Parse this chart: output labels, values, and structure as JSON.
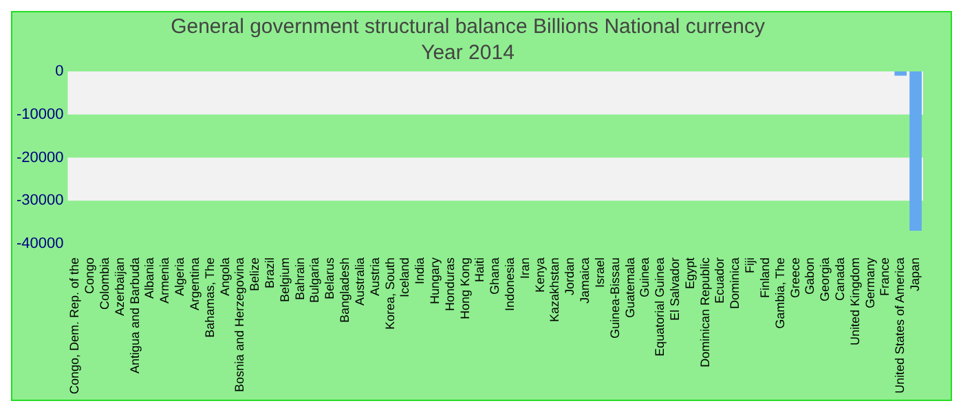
{
  "chart_data": {
    "type": "bar",
    "title": "General government structural balance Billions National currency",
    "subtitle": "Year 2014",
    "categories": [
      "Congo, Dem. Rep. of the",
      "Congo",
      "Colombia",
      "Azerbaijan",
      "Antigua and Barbuda",
      "Albania",
      "Armenia",
      "Algeria",
      "Argentina",
      "Bahamas, The",
      "Angola",
      "Bosnia and Herzegovina",
      "Belize",
      "Brazil",
      "Belgium",
      "Bahrain",
      "Bulgaria",
      "Belarus",
      "Bangladesh",
      "Australia",
      "Austria",
      "Korea, South",
      "Iceland",
      "India",
      "Hungary",
      "Honduras",
      "Hong Kong",
      "Haiti",
      "Ghana",
      "Indonesia",
      "Iran",
      "Kenya",
      "Kazakhstan",
      "Jordan",
      "Jamaica",
      "Israel",
      "Guinea-Bissau",
      "Guatemala",
      "Guinea",
      "Equatorial Guinea",
      "El Salvador",
      "Egypt",
      "Dominican Republic",
      "Ecuador",
      "Dominica",
      "Fiji",
      "Finland",
      "Gambia, The",
      "Greece",
      "Gabon",
      "Georgia",
      "Canada",
      "United Kingdom",
      "Germany",
      "France",
      "United States of America",
      "Japan"
    ],
    "values": [
      0,
      0,
      0,
      0,
      0,
      0,
      0,
      0,
      0,
      0,
      0,
      0,
      0,
      0,
      0,
      0,
      0,
      0,
      0,
      0,
      0,
      0,
      0,
      0,
      0,
      0,
      0,
      0,
      0,
      0,
      0,
      0,
      0,
      0,
      0,
      0,
      0,
      0,
      0,
      0,
      0,
      0,
      0,
      0,
      0,
      0,
      0,
      0,
      0,
      0,
      0,
      0,
      0,
      0,
      0,
      -1000,
      -37000
    ],
    "color": "#64a8f0",
    "ylim": [
      -40000,
      0
    ],
    "yticks": [
      -40000,
      -30000,
      -20000,
      -10000,
      0
    ],
    "bands": [
      {
        "axis": "y",
        "from": -10000,
        "to": 0,
        "color": "#f2f2f2"
      },
      {
        "axis": "y",
        "from": -30000,
        "to": -20000,
        "color": "#f2f2f2"
      }
    ],
    "grid": false,
    "legend": false
  }
}
